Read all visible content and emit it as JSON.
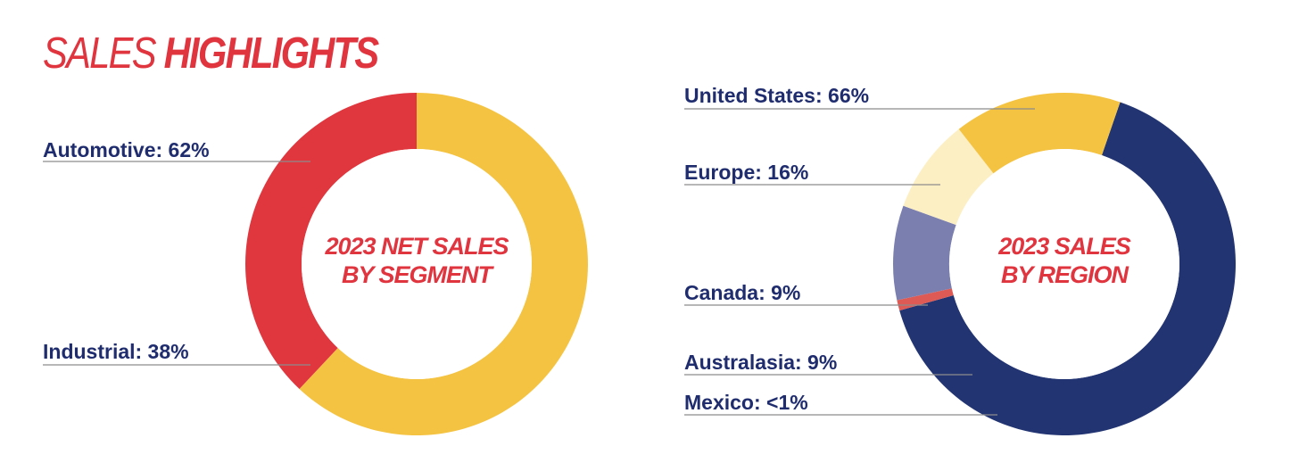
{
  "heading": {
    "light": "SALES",
    "bold": "HIGHLIGHTS",
    "color": "#E0343F"
  },
  "style": {
    "label_color": "#1F2C6E",
    "leader_color": "#8C8C8C",
    "center_title_color": "#E0343F"
  },
  "chart_data": [
    {
      "type": "pie",
      "variant": "donut",
      "center_title": [
        "2023 NET SALES",
        "BY SEGMENT"
      ],
      "legend": "none",
      "slices": [
        {
          "key": "automotive",
          "label": "Automotive: 62%",
          "value": 62,
          "color": "#F5C342"
        },
        {
          "key": "industrial",
          "label": "Industrial: 38%",
          "value": 38,
          "color": "#E0373F"
        }
      ]
    },
    {
      "type": "pie",
      "variant": "donut",
      "center_title": [
        "2023 SALES",
        "BY REGION"
      ],
      "legend": "none",
      "slices": [
        {
          "key": "united-states",
          "label": "United States: 66%",
          "value": 66,
          "color": "#223472"
        },
        {
          "key": "europe",
          "label": "Europe: 16%",
          "value": 16,
          "color": "#F5C342"
        },
        {
          "key": "canada",
          "label": "Canada: 9%",
          "value": 9,
          "color": "#FDEFC4"
        },
        {
          "key": "australasia",
          "label": "Australasia: 9%",
          "value": 9,
          "color": "#7B7FAF"
        },
        {
          "key": "mexico",
          "label": "Mexico: <1%",
          "value": 1,
          "color": "#DD5A55"
        }
      ]
    }
  ]
}
